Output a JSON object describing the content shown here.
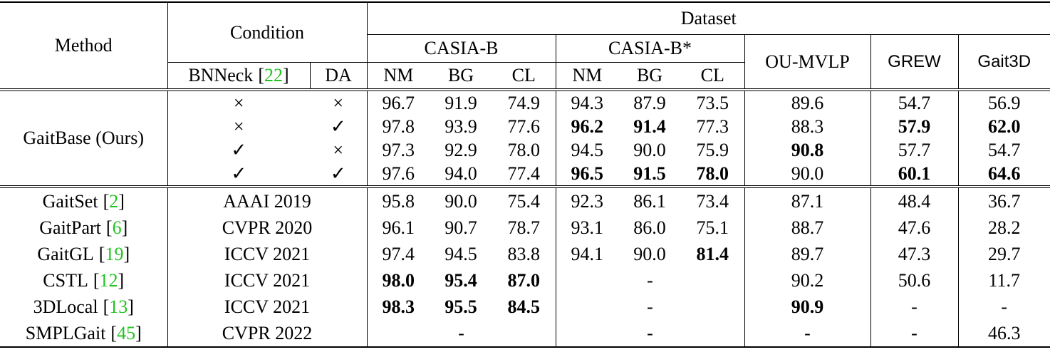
{
  "header": {
    "method": "Method",
    "condition": "Condition",
    "bnneck": "BNNeck",
    "bnneck_ref": "22",
    "da": "DA",
    "dataset": "Dataset",
    "casia_b": "CASIA-B",
    "casia_b_star": "CASIA-B*",
    "ou_mvlp": "OU-MVLP",
    "grew": "GREW",
    "gait3d": "Gait3D",
    "sub_columns": [
      "NM",
      "BG",
      "CL",
      "NM",
      "BG",
      "CL"
    ]
  },
  "brackets": [
    "[",
    "]"
  ],
  "group1": {
    "method": "GaitBase (Ours)",
    "rows": [
      {
        "bnneck": "×",
        "da": "×",
        "casia_b": [
          "96.7",
          "91.9",
          "74.9"
        ],
        "casia_b_star": [
          "94.3",
          "87.9",
          "73.5"
        ],
        "ou_mvlp": "89.6",
        "grew": "54.7",
        "gait3d": "56.9",
        "bold": []
      },
      {
        "bnneck": "×",
        "da": "✓",
        "casia_b": [
          "97.8",
          "93.9",
          "77.6"
        ],
        "casia_b_star": [
          "96.2",
          "91.4",
          "77.3"
        ],
        "ou_mvlp": "88.3",
        "grew": "57.9",
        "gait3d": "62.0",
        "bold": [
          "casia_b_star.0",
          "casia_b_star.1",
          "grew",
          "gait3d"
        ]
      },
      {
        "bnneck": "✓",
        "da": "×",
        "casia_b": [
          "97.3",
          "92.9",
          "78.0"
        ],
        "casia_b_star": [
          "94.5",
          "90.0",
          "75.9"
        ],
        "ou_mvlp": "90.8",
        "grew": "57.7",
        "gait3d": "54.7",
        "bold": [
          "ou_mvlp"
        ]
      },
      {
        "bnneck": "✓",
        "da": "✓",
        "casia_b": [
          "97.6",
          "94.0",
          "77.4"
        ],
        "casia_b_star": [
          "96.5",
          "91.5",
          "78.0"
        ],
        "ou_mvlp": "90.0",
        "grew": "60.1",
        "gait3d": "64.6",
        "bold": [
          "casia_b_star.0",
          "casia_b_star.1",
          "casia_b_star.2",
          "grew",
          "gait3d"
        ]
      }
    ]
  },
  "group2": {
    "rows": [
      {
        "method": "GaitSet",
        "ref": "2",
        "venue": "AAAI 2019",
        "casia_b": [
          "95.8",
          "90.0",
          "75.4"
        ],
        "casia_b_star": [
          "92.3",
          "86.1",
          "73.4"
        ],
        "ou_mvlp": "87.1",
        "grew": "48.4",
        "gait3d": "36.7",
        "bold": []
      },
      {
        "method": "GaitPart",
        "ref": "6",
        "venue": "CVPR 2020",
        "casia_b": [
          "96.1",
          "90.7",
          "78.7"
        ],
        "casia_b_star": [
          "93.1",
          "86.0",
          "75.1"
        ],
        "ou_mvlp": "88.7",
        "grew": "47.6",
        "gait3d": "28.2",
        "bold": []
      },
      {
        "method": "GaitGL",
        "ref": "19",
        "venue": "ICCV 2021",
        "casia_b": [
          "97.4",
          "94.5",
          "83.8"
        ],
        "casia_b_star": [
          "94.1",
          "90.0",
          "81.4"
        ],
        "ou_mvlp": "89.7",
        "grew": "47.3",
        "gait3d": "29.7",
        "bold": [
          "casia_b_star.2"
        ]
      },
      {
        "method": "CSTL",
        "ref": "12",
        "venue": "ICCV 2021",
        "casia_b": [
          "98.0",
          "95.4",
          "87.0"
        ],
        "casia_b_star": "-",
        "ou_mvlp": "90.2",
        "grew": "50.6",
        "gait3d": "11.7",
        "bold": [
          "casia_b.0",
          "casia_b.1",
          "casia_b.2"
        ]
      },
      {
        "method": "3DLocal",
        "ref": "13",
        "venue": "ICCV 2021",
        "casia_b": [
          "98.3",
          "95.5",
          "84.5"
        ],
        "casia_b_star": "-",
        "ou_mvlp": "90.9",
        "grew": "-",
        "gait3d": "-",
        "bold": [
          "casia_b.0",
          "casia_b.1",
          "casia_b.2",
          "ou_mvlp"
        ]
      },
      {
        "method": "SMPLGait",
        "ref": "45",
        "venue": "CVPR 2022",
        "casia_b": "-",
        "casia_b_star": "-",
        "ou_mvlp": "-",
        "grew": "-",
        "gait3d": "46.3",
        "bold": []
      }
    ]
  }
}
